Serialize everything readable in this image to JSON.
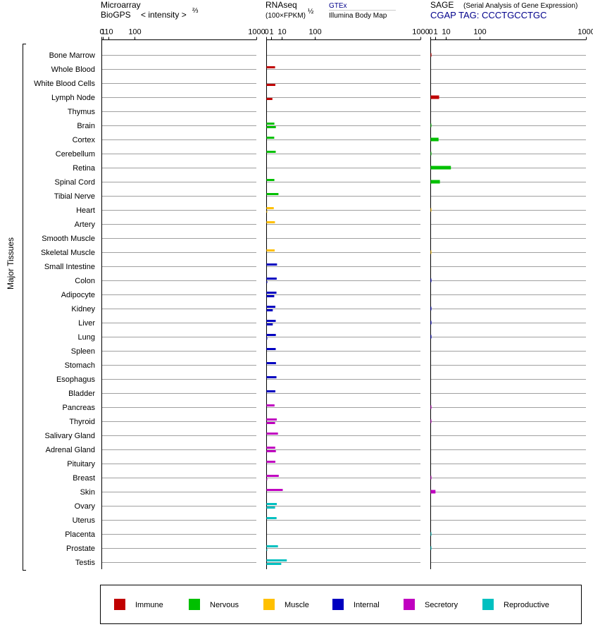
{
  "headers": {
    "microarray_line1": "Microarray",
    "microarray_line2": "BioGPS",
    "microarray_unit": "< intensity >",
    "microarray_exp": "⅔",
    "rnaseq_line1": "RNAseq",
    "rnaseq_unit": "(100×FPKM)",
    "rnaseq_exp": "½",
    "gtex": "GTEx",
    "illumina": "Illumina Body Map",
    "sage_line1": "SAGE",
    "sage_desc": "(Serial Analysis of Gene Expression)",
    "sage_tag": "CGAP TAG: CCCTGCCTGC"
  },
  "y_group_label": "Major Tissues",
  "colors": {
    "Immune": "#c00000",
    "Nervous": "#00c000",
    "Muscle": "#ffc000",
    "Internal": "#0000c0",
    "Secretory": "#c000c0",
    "Reproductive": "#00c0c0"
  },
  "chart_data": {
    "type": "bar",
    "x_scale": "power",
    "panels": [
      {
        "name": "Microarray",
        "exponent": 0.6667,
        "ticks": [
          "0",
          "1",
          "10",
          "100",
          "1000"
        ]
      },
      {
        "name": "RNAseq",
        "exponent": 0.5,
        "ticks": [
          "0",
          "1",
          "10",
          "100",
          "1000"
        ]
      },
      {
        "name": "SAGE",
        "exponent": 0.5,
        "ticks": [
          "0",
          "1",
          "10",
          "100",
          "1000"
        ]
      }
    ],
    "legend": [
      "Immune",
      "Nervous",
      "Muscle",
      "Internal",
      "Secretory",
      "Reproductive"
    ],
    "rows": [
      {
        "tissue": "Bone Marrow",
        "group": "Immune",
        "gtex": 0,
        "illumina": 0,
        "sage": 0.05
      },
      {
        "tissue": "Whole Blood",
        "group": "Immune",
        "gtex": 3.3,
        "illumina": 0,
        "sage": 0
      },
      {
        "tissue": "White Blood Cells",
        "group": "Immune",
        "gtex": 0,
        "illumina": 3.5,
        "sage": 0
      },
      {
        "tissue": "Lymph Node",
        "group": "Immune",
        "gtex": 0,
        "illumina": 1.6,
        "sage": 3.2
      },
      {
        "tissue": "Thymus",
        "group": "Immune",
        "gtex": 0,
        "illumina": 0,
        "sage": 0
      },
      {
        "tissue": "Brain",
        "group": "Nervous",
        "gtex": 2.8,
        "illumina": 3.9,
        "sage": 0.03
      },
      {
        "tissue": "Cortex",
        "group": "Nervous",
        "gtex": 2.7,
        "illumina": 0,
        "sage": 2.8
      },
      {
        "tissue": "Cerebellum",
        "group": "Nervous",
        "gtex": 3.8,
        "illumina": 0,
        "sage": 0.03
      },
      {
        "tissue": "Retina",
        "group": "Nervous",
        "gtex": 0,
        "illumina": 0,
        "sage": 17.5
      },
      {
        "tissue": "Spinal Cord",
        "group": "Nervous",
        "gtex": 2.8,
        "illumina": 0,
        "sage": 3.8
      },
      {
        "tissue": "Tibial Nerve",
        "group": "Nervous",
        "gtex": 6.3,
        "illumina": 0,
        "sage": 0
      },
      {
        "tissue": "Heart",
        "group": "Muscle",
        "gtex": 2.4,
        "illumina": 0.01,
        "sage": 0.02
      },
      {
        "tissue": "Artery",
        "group": "Muscle",
        "gtex": 3.2,
        "illumina": 0,
        "sage": 0
      },
      {
        "tissue": "Smooth Muscle",
        "group": "Muscle",
        "gtex": 0,
        "illumina": 0,
        "sage": 0
      },
      {
        "tissue": "Skeletal Muscle",
        "group": "Muscle",
        "gtex": 3.0,
        "illumina": 0,
        "sage": 0.02
      },
      {
        "tissue": "Small Intestine",
        "group": "Internal",
        "gtex": 4.9,
        "illumina": 0,
        "sage": 0
      },
      {
        "tissue": "Colon",
        "group": "Internal",
        "gtex": 4.6,
        "illumina": 0.02,
        "sage": 0.03
      },
      {
        "tissue": "Adipocyte",
        "group": "Internal",
        "gtex": 4.4,
        "illumina": 2.7,
        "sage": 0
      },
      {
        "tissue": "Kidney",
        "group": "Internal",
        "gtex": 3.5,
        "illumina": 1.8,
        "sage": 0.03
      },
      {
        "tissue": "Liver",
        "group": "Internal",
        "gtex": 3.8,
        "illumina": 1.8,
        "sage": 0.03
      },
      {
        "tissue": "Lung",
        "group": "Internal",
        "gtex": 3.9,
        "illumina": 0.02,
        "sage": 0.03
      },
      {
        "tissue": "Spleen",
        "group": "Internal",
        "gtex": 3.8,
        "illumina": 0,
        "sage": 0
      },
      {
        "tissue": "Stomach",
        "group": "Internal",
        "gtex": 4.0,
        "illumina": 0,
        "sage": 0
      },
      {
        "tissue": "Esophagus",
        "group": "Internal",
        "gtex": 4.4,
        "illumina": 0,
        "sage": 0
      },
      {
        "tissue": "Bladder",
        "group": "Internal",
        "gtex": 3.5,
        "illumina": 0,
        "sage": 0
      },
      {
        "tissue": "Pancreas",
        "group": "Secretory",
        "gtex": 2.9,
        "illumina": 0,
        "sage": 0.03
      },
      {
        "tissue": "Thyroid",
        "group": "Secretory",
        "gtex": 4.7,
        "illumina": 3.3,
        "sage": 0.03
      },
      {
        "tissue": "Salivary Gland",
        "group": "Secretory",
        "gtex": 5.8,
        "illumina": 0,
        "sage": 0
      },
      {
        "tissue": "Adrenal Gland",
        "group": "Secretory",
        "gtex": 3.4,
        "illumina": 3.9,
        "sage": 0
      },
      {
        "tissue": "Pituitary",
        "group": "Secretory",
        "gtex": 3.5,
        "illumina": 0,
        "sage": 0
      },
      {
        "tissue": "Breast",
        "group": "Secretory",
        "gtex": 6.6,
        "illumina": 0.02,
        "sage": 0.03
      },
      {
        "tissue": "Skin",
        "group": "Secretory",
        "gtex": 11.5,
        "illumina": 0,
        "sage": 1.1
      },
      {
        "tissue": "Ovary",
        "group": "Reproductive",
        "gtex": 4.7,
        "illumina": 3.3,
        "sage": 0
      },
      {
        "tissue": "Uterus",
        "group": "Reproductive",
        "gtex": 4.5,
        "illumina": 0,
        "sage": 0
      },
      {
        "tissue": "Placenta",
        "group": "Reproductive",
        "gtex": 0,
        "illumina": 0,
        "sage": 0.03
      },
      {
        "tissue": "Prostate",
        "group": "Reproductive",
        "gtex": 5.8,
        "illumina": 0.02,
        "sage": 0.03
      },
      {
        "tissue": "Testis",
        "group": "Reproductive",
        "gtex": 17.8,
        "illumina": 9.5,
        "sage": 0
      }
    ]
  }
}
